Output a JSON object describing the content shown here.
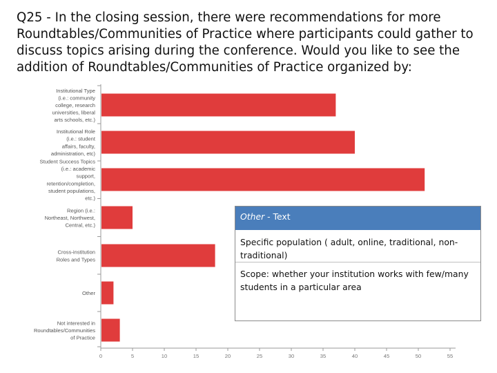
{
  "question": "Q25 - In the closing session, there were recommendations for more Roundtables/Communities of Practice where participants could gather to discuss topics arising during the conference. Would you like to see the addition of Roundtables/Communities of Practice organized by:",
  "colors": {
    "bar": "#e03c3c",
    "axis": "#999999",
    "header": "#4a7ebb"
  },
  "chart_data": {
    "type": "bar",
    "orientation": "horizontal",
    "categories": [
      [
        "Institutional Type",
        "(i.e.: community",
        "college, research",
        "universities, liberal",
        "arts schools, etc.)"
      ],
      [
        "Institutional Role",
        "(i.e.: student",
        "affairs, faculty,",
        "administration, etc)"
      ],
      [
        "Student Success Topics",
        "(i.e.: academic",
        "support,",
        "retention/completion,",
        "student populations,",
        "etc.)"
      ],
      [
        "Region (i.e.:",
        "Northeast, Northwest,",
        "Central, etc.)"
      ],
      [
        "Cross-institution",
        "Roles and Types"
      ],
      [
        "Other"
      ],
      [
        "Not interested in",
        "Roundtables/Communities",
        "of Practice"
      ]
    ],
    "values": [
      37,
      40,
      51,
      5,
      18,
      2,
      3
    ],
    "xlim": [
      0,
      55
    ],
    "xticks": [
      "0",
      "5",
      "10",
      "15",
      "20",
      "25",
      "30",
      "35",
      "40",
      "45",
      "50",
      "55"
    ],
    "grid": false,
    "legend": "none"
  },
  "other_table": {
    "header_italic": "Other",
    "header_rest": " - Text",
    "rows": [
      "Specific population ( adult, online, traditional, non-traditional)",
      "Scope: whether your institution works with few/many students in a particular area"
    ]
  }
}
